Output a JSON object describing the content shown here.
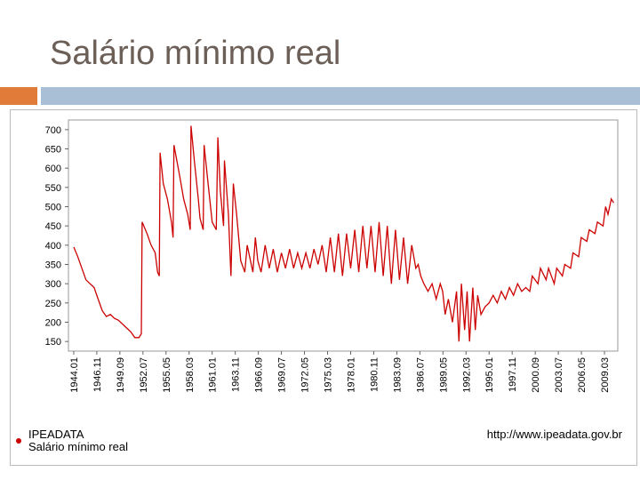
{
  "chart_data": {
    "type": "line",
    "title": "Salário mínimo real",
    "annotations": [
      "IPEADATA",
      "http://www.ipeadata.gov.br"
    ],
    "xlim": [
      1943.35,
      2010.8
    ],
    "ylim": [
      125,
      725
    ],
    "yticks": [
      150,
      200,
      250,
      300,
      350,
      400,
      450,
      500,
      550,
      600,
      650,
      700
    ],
    "xticks": [
      {
        "value": 1944.0,
        "label": "1944.01"
      },
      {
        "value": 1946.833,
        "label": "1946.11"
      },
      {
        "value": 1949.667,
        "label": "1949.09"
      },
      {
        "value": 1952.5,
        "label": "1952.07"
      },
      {
        "value": 1955.333,
        "label": "1955.05"
      },
      {
        "value": 1958.167,
        "label": "1958.03"
      },
      {
        "value": 1961.0,
        "label": "1961.01"
      },
      {
        "value": 1963.833,
        "label": "1963.11"
      },
      {
        "value": 1966.667,
        "label": "1966.09"
      },
      {
        "value": 1969.5,
        "label": "1969.07"
      },
      {
        "value": 1972.333,
        "label": "1972.05"
      },
      {
        "value": 1975.167,
        "label": "1975.03"
      },
      {
        "value": 1978.0,
        "label": "1978.01"
      },
      {
        "value": 1980.833,
        "label": "1980.11"
      },
      {
        "value": 1983.667,
        "label": "1983.09"
      },
      {
        "value": 1986.5,
        "label": "1986.07"
      },
      {
        "value": 1989.333,
        "label": "1989.05"
      },
      {
        "value": 1992.167,
        "label": "1992.03"
      },
      {
        "value": 1995.0,
        "label": "1995.01"
      },
      {
        "value": 1997.833,
        "label": "1997.11"
      },
      {
        "value": 2000.667,
        "label": "2000.09"
      },
      {
        "value": 2003.5,
        "label": "2003.07"
      },
      {
        "value": 2006.333,
        "label": "2006.05"
      },
      {
        "value": 2009.167,
        "label": "2009.03"
      }
    ],
    "x": [
      1944.0,
      1944.5,
      1945,
      1945.5,
      1946,
      1946.5,
      1947,
      1947.5,
      1948,
      1948.5,
      1949,
      1949.5,
      1950,
      1950.5,
      1951,
      1951.5,
      1952.0,
      1952.3,
      1952.4,
      1953,
      1953.5,
      1954,
      1954.3,
      1954.5,
      1954.6,
      1955,
      1955.5,
      1956,
      1956.2,
      1956.3,
      1957,
      1957.5,
      1958,
      1958.3,
      1958.4,
      1958.8,
      1959.3,
      1959.5,
      1959.9,
      1960.0,
      1960.5,
      1961,
      1961.5,
      1961.7,
      1962,
      1962.4,
      1962.5,
      1963,
      1963.3,
      1963.6,
      1964,
      1964.5,
      1965,
      1965.3,
      1965.5,
      1966,
      1966.3,
      1966.6,
      1967,
      1967.5,
      1968,
      1968.5,
      1969,
      1969.5,
      1970,
      1970.5,
      1971,
      1971.5,
      1972,
      1972.5,
      1973,
      1973.5,
      1974,
      1974.5,
      1975,
      1975.5,
      1976,
      1976.5,
      1977,
      1977.5,
      1978,
      1978.5,
      1979,
      1979.5,
      1980,
      1980.5,
      1981,
      1981.5,
      1982,
      1982.5,
      1983,
      1983.5,
      1984,
      1984.5,
      1985,
      1985.5,
      1986,
      1986.3,
      1986.6,
      1987,
      1987.5,
      1988,
      1988.5,
      1989,
      1989.3,
      1989.6,
      1990,
      1990.5,
      1991,
      1991.3,
      1991.6,
      1992,
      1992.3,
      1992.6,
      1993,
      1993.3,
      1993.6,
      1994,
      1994.5,
      1995,
      1995.5,
      1996,
      1996.5,
      1997,
      1997.5,
      1998,
      1998.5,
      1999,
      1999.5,
      2000,
      2000.3,
      2001,
      2001.3,
      2002,
      2002.3,
      2003,
      2003.3,
      2004,
      2004.3,
      2005,
      2005.3,
      2006,
      2006.3,
      2007,
      2007.3,
      2008,
      2008.3,
      2009,
      2009.3,
      2009.6,
      2010,
      2010.3
    ],
    "series": [
      {
        "name": "Salário mínimo real",
        "color": "#cc0000",
        "values": [
          395,
          370,
          340,
          310,
          300,
          290,
          260,
          230,
          215,
          220,
          210,
          205,
          195,
          185,
          175,
          160,
          160,
          170,
          460,
          430,
          400,
          380,
          330,
          320,
          640,
          560,
          520,
          460,
          420,
          660,
          580,
          520,
          480,
          440,
          710,
          620,
          520,
          470,
          440,
          660,
          560,
          460,
          440,
          680,
          540,
          450,
          620,
          480,
          320,
          560,
          480,
          360,
          330,
          400,
          380,
          330,
          420,
          360,
          330,
          400,
          340,
          390,
          330,
          380,
          340,
          390,
          340,
          380,
          340,
          380,
          340,
          390,
          350,
          400,
          330,
          420,
          330,
          430,
          320,
          430,
          340,
          440,
          330,
          450,
          340,
          450,
          330,
          460,
          320,
          450,
          300,
          440,
          310,
          420,
          300,
          400,
          340,
          350,
          320,
          300,
          280,
          300,
          260,
          300,
          280,
          220,
          260,
          200,
          280,
          150,
          300,
          180,
          280,
          150,
          290,
          180,
          270,
          220,
          240,
          250,
          270,
          250,
          280,
          260,
          290,
          270,
          300,
          280,
          290,
          280,
          320,
          300,
          340,
          310,
          340,
          300,
          340,
          320,
          350,
          340,
          380,
          370,
          420,
          410,
          440,
          430,
          460,
          450,
          500,
          480,
          520,
          510
        ]
      }
    ]
  }
}
